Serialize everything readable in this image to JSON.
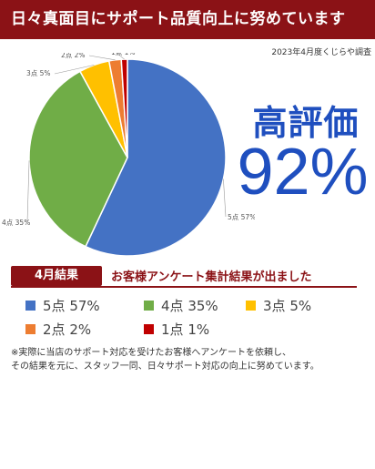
{
  "header": {
    "title": "日々真面目にサポート品質向上に努めています"
  },
  "survey_label": "2023年4月度くじらや調査",
  "highlight": {
    "label": "高評価",
    "percent": "92%"
  },
  "results": {
    "month_badge": "4月結果",
    "headline": "お客様アンケート集計結果が出ました"
  },
  "legend": [
    {
      "label": "5点",
      "value": "57%",
      "color": "#4472c4"
    },
    {
      "label": "4点",
      "value": "35%",
      "color": "#70ad47"
    },
    {
      "label": "3点",
      "value": "5%",
      "color": "#ffc000"
    },
    {
      "label": "2点",
      "value": "2%",
      "color": "#ed7d31"
    },
    {
      "label": "1点",
      "value": "1%",
      "color": "#c00000"
    }
  ],
  "note": {
    "line1": "※実際に当店のサポート対応を受けたお客様へアンケートを依頼し、",
    "line2": "その結果を元に、スタッフ一同、日々サポート対応の向上に努めています。"
  },
  "chart_data": {
    "type": "pie",
    "categories": [
      "5点",
      "4点",
      "3点",
      "2点",
      "1点"
    ],
    "values": [
      57,
      35,
      5,
      2,
      1
    ],
    "labels": [
      "5点 57%",
      "4点 35%",
      "3点 5%",
      "2点 2%",
      "1点 1%"
    ],
    "colors": [
      "#4472c4",
      "#70ad47",
      "#ffc000",
      "#ed7d31",
      "#c00000"
    ],
    "start": "12 o'clock",
    "direction": "clockwise"
  }
}
